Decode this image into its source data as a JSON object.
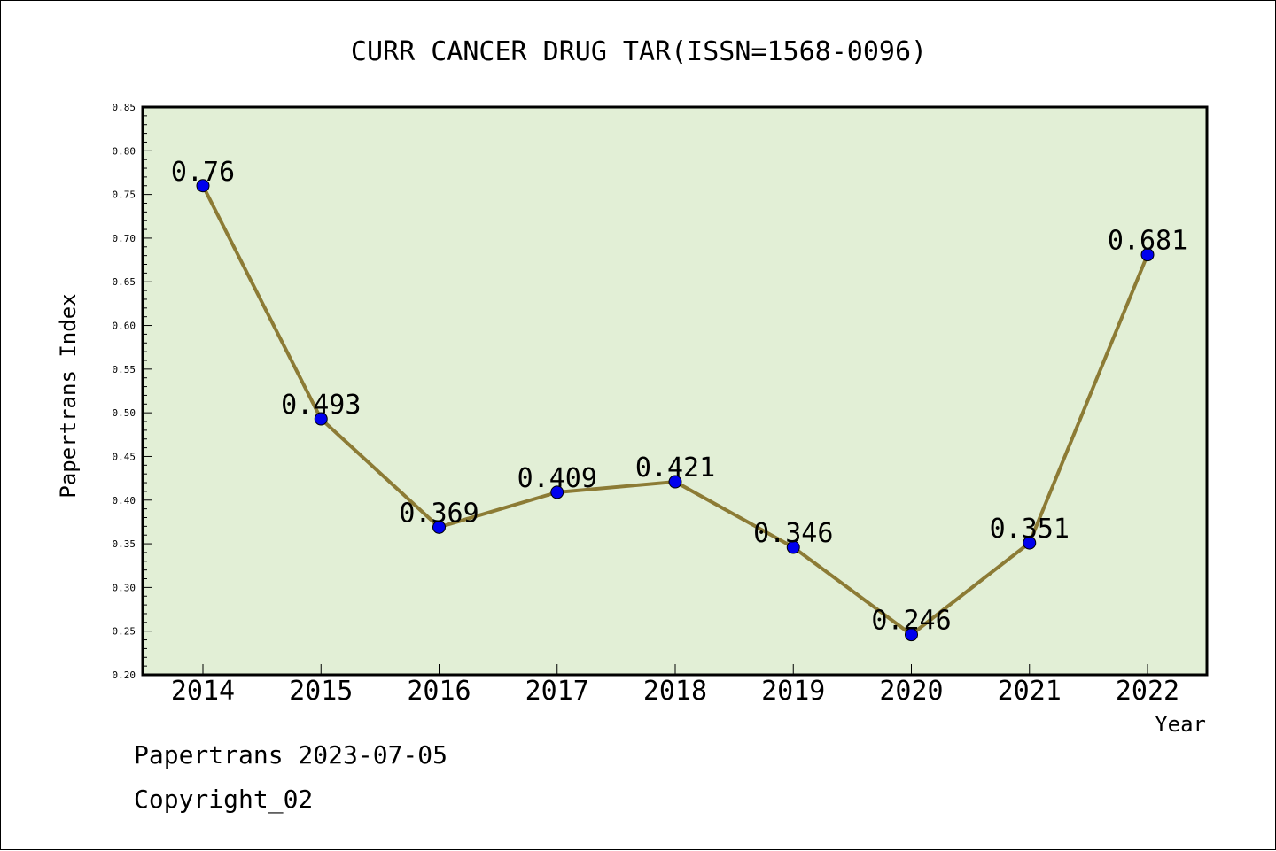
{
  "chart_data": {
    "type": "line",
    "title": "CURR CANCER DRUG TAR(ISSN=1568-0096)",
    "xlabel": "Year",
    "ylabel": "Papertrans Index",
    "categories": [
      "2014",
      "2015",
      "2016",
      "2017",
      "2018",
      "2019",
      "2020",
      "2021",
      "2022"
    ],
    "series": [
      {
        "values": [
          0.76,
          0.493,
          0.369,
          0.409,
          0.421,
          0.346,
          0.246,
          0.351,
          0.681
        ],
        "labels": [
          "0.76",
          "0.493",
          "0.369",
          "0.409",
          "0.421",
          "0.346",
          "0.246",
          "0.351",
          "0.681"
        ]
      }
    ],
    "ylim": [
      0.2,
      0.85
    ],
    "yticks": [
      "0.20",
      "0.25",
      "0.30",
      "0.35",
      "0.40",
      "0.45",
      "0.50",
      "0.55",
      "0.60",
      "0.65",
      "0.70",
      "0.75",
      "0.80",
      "0.85"
    ],
    "grid": false,
    "legend": "none",
    "colors": {
      "plot_background": "#e2efd6",
      "line": "#8c7b35",
      "marker": "#0000ee"
    }
  },
  "footer": {
    "line1": "Papertrans 2023-07-05",
    "line2": "Copyright_02"
  }
}
